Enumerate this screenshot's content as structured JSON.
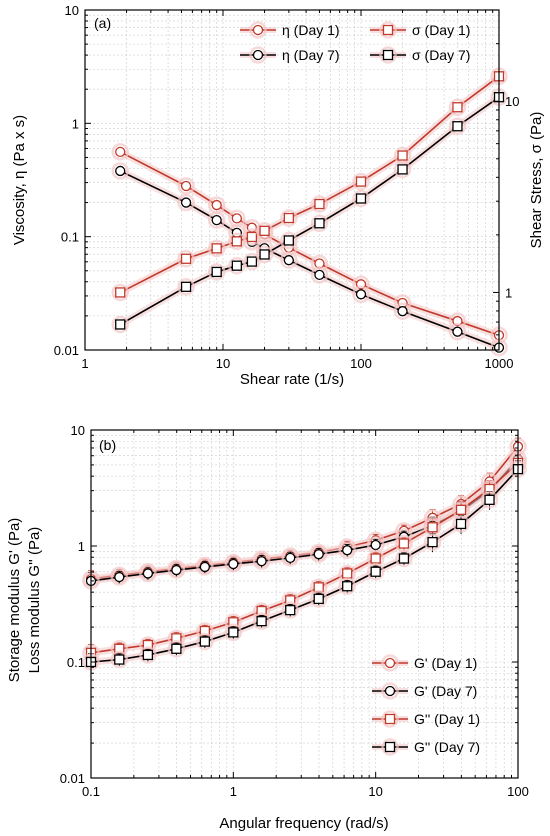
{
  "colors": {
    "day1": "#c0392b",
    "day7": "#000000",
    "halo": "#f4c7c7",
    "grid": "#cccccc"
  },
  "chart_data": [
    {
      "type": "scatter",
      "panel_label": "(a)",
      "xlabel": "Shear rate (1/s)",
      "ylabel": "Viscosity, η  (Pa x s)",
      "y2label": "Shear Stress, σ (Pa)",
      "xscale": "log",
      "yscale": "log",
      "y2scale": "log",
      "xlim": [
        1,
        1000
      ],
      "ylim": [
        0.01,
        10
      ],
      "y2lim": [
        0.5,
        30
      ],
      "xticks": [
        "1",
        "10",
        "100",
        "1000"
      ],
      "yticks": [
        "0.01",
        "0.1",
        "1",
        "10"
      ],
      "y2ticks": [
        "1",
        "10"
      ],
      "grid": true,
      "legend_position": "top-right",
      "series": [
        {
          "name": "η (Day 1)",
          "axis": "left",
          "marker": "circle",
          "color_key": "day1",
          "x": [
            1.8,
            5.4,
            9,
            12.6,
            16.2,
            20,
            30,
            50,
            100,
            200,
            500,
            1000
          ],
          "y": [
            0.56,
            0.28,
            0.19,
            0.145,
            0.12,
            0.105,
            0.08,
            0.058,
            0.038,
            0.026,
            0.018,
            0.0135
          ]
        },
        {
          "name": "η (Day 7)",
          "axis": "left",
          "marker": "circle",
          "color_key": "day7",
          "x": [
            1.8,
            5.4,
            9,
            12.6,
            16.2,
            20,
            30,
            50,
            100,
            200,
            500,
            1000
          ],
          "y": [
            0.38,
            0.2,
            0.14,
            0.108,
            0.09,
            0.079,
            0.062,
            0.046,
            0.031,
            0.022,
            0.0145,
            0.0105
          ]
        },
        {
          "name": "σ (Day 1)",
          "axis": "right",
          "marker": "square",
          "color_key": "day1",
          "x": [
            1.8,
            5.4,
            9,
            12.6,
            16.2,
            20,
            30,
            50,
            100,
            200,
            500,
            1000
          ],
          "y": [
            1,
            1.5,
            1.7,
            1.85,
            1.95,
            2.1,
            2.45,
            2.9,
            3.8,
            5.2,
            9.3,
            13.5
          ]
        },
        {
          "name": "σ (Day 7)",
          "axis": "right",
          "marker": "square",
          "color_key": "day7",
          "x": [
            1.8,
            5.4,
            9,
            12.6,
            16.2,
            20,
            30,
            50,
            100,
            200,
            500,
            1000
          ],
          "y": [
            0.68,
            1.07,
            1.28,
            1.38,
            1.45,
            1.58,
            1.87,
            2.3,
            3.1,
            4.4,
            7.4,
            10.5
          ]
        }
      ]
    },
    {
      "type": "scatter",
      "panel_label": "(b)",
      "xlabel": "Angular frequency (rad/s)",
      "ylabel": "Storage modulus G' (Pa)",
      "ylabel2": "Loss modulus G'' (Pa)",
      "xscale": "log",
      "yscale": "log",
      "xlim": [
        0.1,
        100
      ],
      "ylim": [
        0.01,
        10
      ],
      "xticks": [
        "0.1",
        "1",
        "10",
        "100"
      ],
      "yticks": [
        "0.01",
        "0.1",
        "1",
        "10"
      ],
      "grid": true,
      "legend_position": "bottom-right",
      "series": [
        {
          "name": "G' (Day 1)",
          "marker": "circle",
          "color_key": "day1",
          "x": [
            0.1,
            0.158,
            0.251,
            0.398,
            0.631,
            1,
            1.58,
            2.51,
            3.98,
            6.31,
            10,
            15.8,
            25.1,
            39.8,
            63.1,
            100
          ],
          "y": [
            0.52,
            0.56,
            0.6,
            0.64,
            0.68,
            0.72,
            0.77,
            0.82,
            0.88,
            0.98,
            1.12,
            1.35,
            1.75,
            2.3,
            3.6,
            7.2
          ]
        },
        {
          "name": "G' (Day 7)",
          "marker": "circle",
          "color_key": "day7",
          "x": [
            0.1,
            0.158,
            0.251,
            0.398,
            0.631,
            1,
            1.58,
            2.51,
            3.98,
            6.31,
            10,
            15.8,
            25.1,
            39.8,
            63.1,
            100
          ],
          "y": [
            0.5,
            0.54,
            0.58,
            0.62,
            0.66,
            0.7,
            0.74,
            0.79,
            0.85,
            0.92,
            1.02,
            1.2,
            1.5,
            2.0,
            3.0,
            5.6
          ]
        },
        {
          "name": "G'' (Day 1)",
          "marker": "square",
          "color_key": "day1",
          "x": [
            0.1,
            0.158,
            0.251,
            0.398,
            0.631,
            1,
            1.58,
            2.51,
            3.98,
            6.31,
            10,
            15.8,
            25.1,
            39.8,
            63.1,
            100
          ],
          "y": [
            0.12,
            0.13,
            0.14,
            0.16,
            0.185,
            0.22,
            0.275,
            0.34,
            0.44,
            0.58,
            0.78,
            1.05,
            1.45,
            2.05,
            3.1,
            5.2
          ]
        },
        {
          "name": "G'' (Day 7)",
          "marker": "square",
          "color_key": "day7",
          "x": [
            0.1,
            0.158,
            0.251,
            0.398,
            0.631,
            1,
            1.58,
            2.51,
            3.98,
            6.31,
            10,
            15.8,
            25.1,
            39.8,
            63.1,
            100
          ],
          "y": [
            0.1,
            0.105,
            0.115,
            0.13,
            0.15,
            0.18,
            0.225,
            0.28,
            0.35,
            0.45,
            0.6,
            0.78,
            1.08,
            1.55,
            2.5,
            4.6
          ]
        }
      ]
    }
  ]
}
